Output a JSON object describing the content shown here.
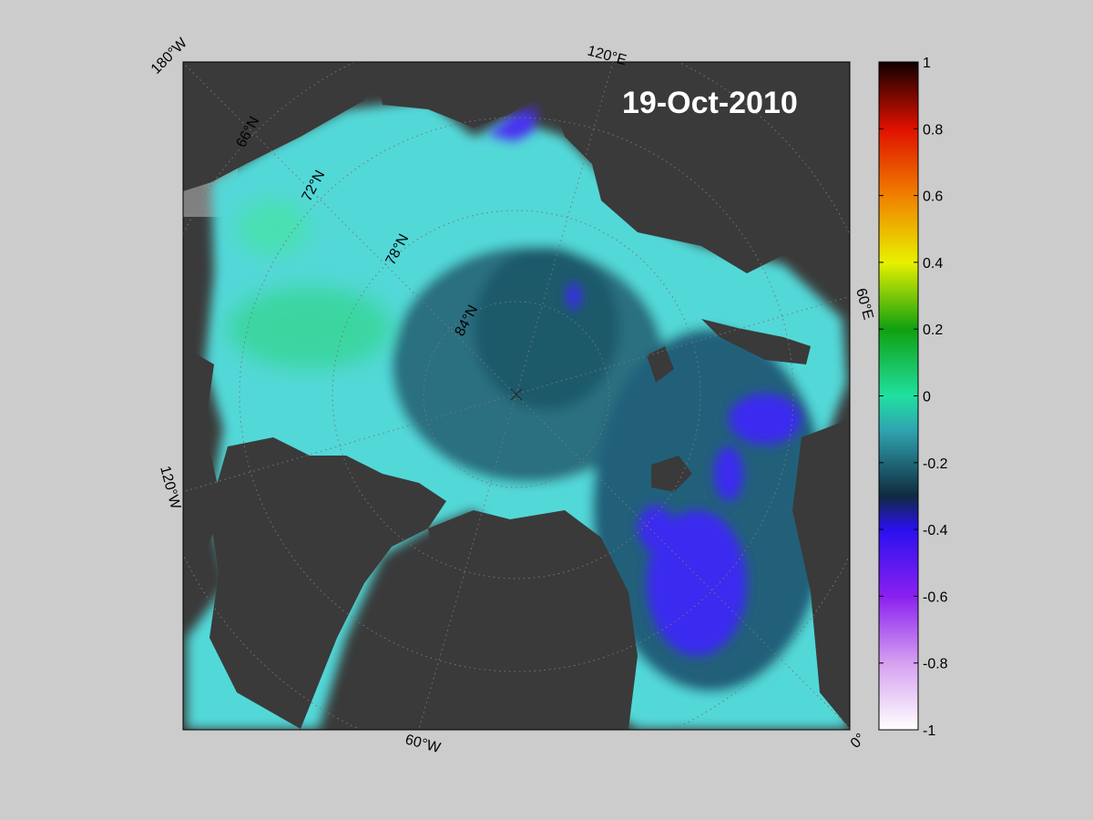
{
  "date_label": "19-Oct-2010",
  "longitude_labels": {
    "lon_180w": "180°W",
    "lon_120e": "120°E",
    "lon_60e": "60°E",
    "lon_120w": "120°W",
    "lon_60w": "60°W",
    "lon_0": "0°"
  },
  "latitude_labels": {
    "lat_66": "66°N",
    "lat_72": "72°N",
    "lat_78": "78°N",
    "lat_84": "84°N"
  },
  "colorbar": {
    "min": -1,
    "max": 1,
    "ticks": [
      "1",
      "0.8",
      "0.6",
      "0.4",
      "0.2",
      "0",
      "-0.2",
      "-0.4",
      "-0.6",
      "-0.8",
      "-1"
    ]
  },
  "colors": {
    "background": "#cccccc",
    "land": "#3a3a3a",
    "land_outside": "#808080",
    "ocean_light": "#55dddd",
    "ocean_dark": "#1d5a6a",
    "anomaly_blue": "#3a2af0"
  }
}
